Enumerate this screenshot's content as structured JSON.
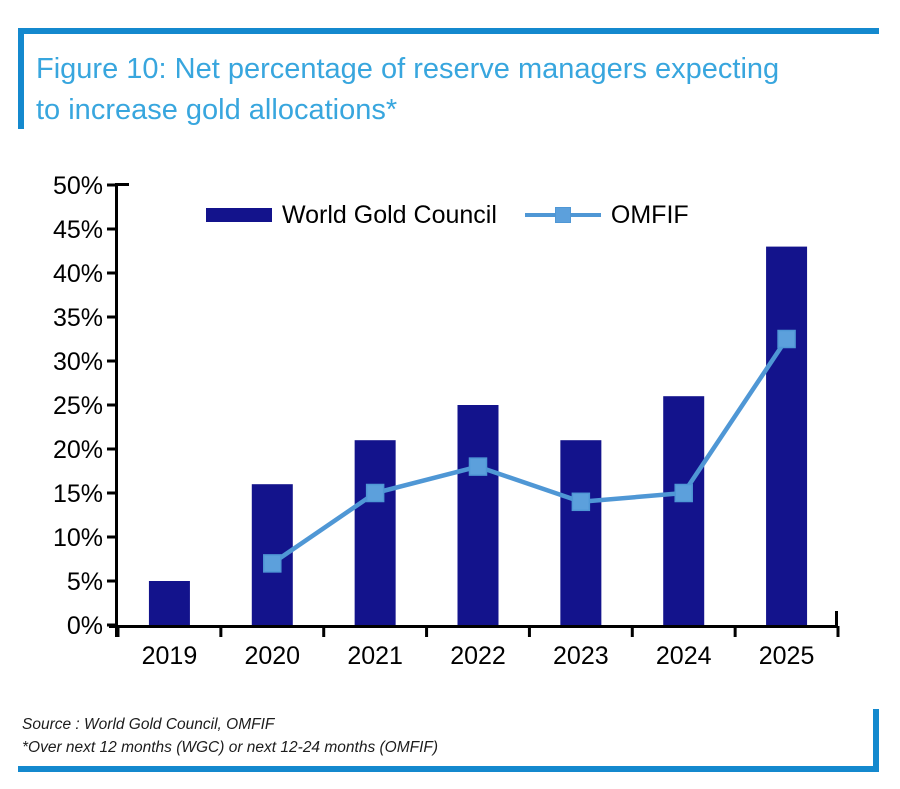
{
  "figure": {
    "title_line1": "Figure 10: Net percentage of reserve managers expecting",
    "title_line2": "to increase gold allocations*"
  },
  "legend": [
    {
      "label": "World Gold Council",
      "type": "bar"
    },
    {
      "label": "OMFIF",
      "type": "line"
    }
  ],
  "source": {
    "line1": "Source : World Gold Council, OMFIF",
    "line2": "*Over next 12 months (WGC) or next 12-24 months (OMFIF)"
  },
  "colors": {
    "frame_blue": "#1489CE",
    "title_blue": "#38A6DE",
    "bar_navy": "#13138C",
    "line_blue": "#4F97D5",
    "marker_fill": "#5CA0DC",
    "axis_black": "#000000"
  },
  "chart_data": {
    "type": "bar+line",
    "title": "Net percentage of reserve managers expecting to increase gold allocations*",
    "categories": [
      "2019",
      "2020",
      "2021",
      "2022",
      "2023",
      "2024",
      "2025"
    ],
    "series": [
      {
        "name": "World Gold Council",
        "type": "bar",
        "color": "#13138C",
        "values": [
          5,
          16,
          21,
          25,
          21,
          26,
          43
        ]
      },
      {
        "name": "OMFIF",
        "type": "line",
        "color": "#4F97D5",
        "values": [
          null,
          7,
          15,
          18,
          14,
          15,
          32.5
        ]
      }
    ],
    "xlabel": "",
    "ylabel": "",
    "ylim": [
      0,
      50
    ],
    "ytick_step": 5,
    "ytick_suffix": "%",
    "grid": false,
    "legend_position": "top"
  }
}
